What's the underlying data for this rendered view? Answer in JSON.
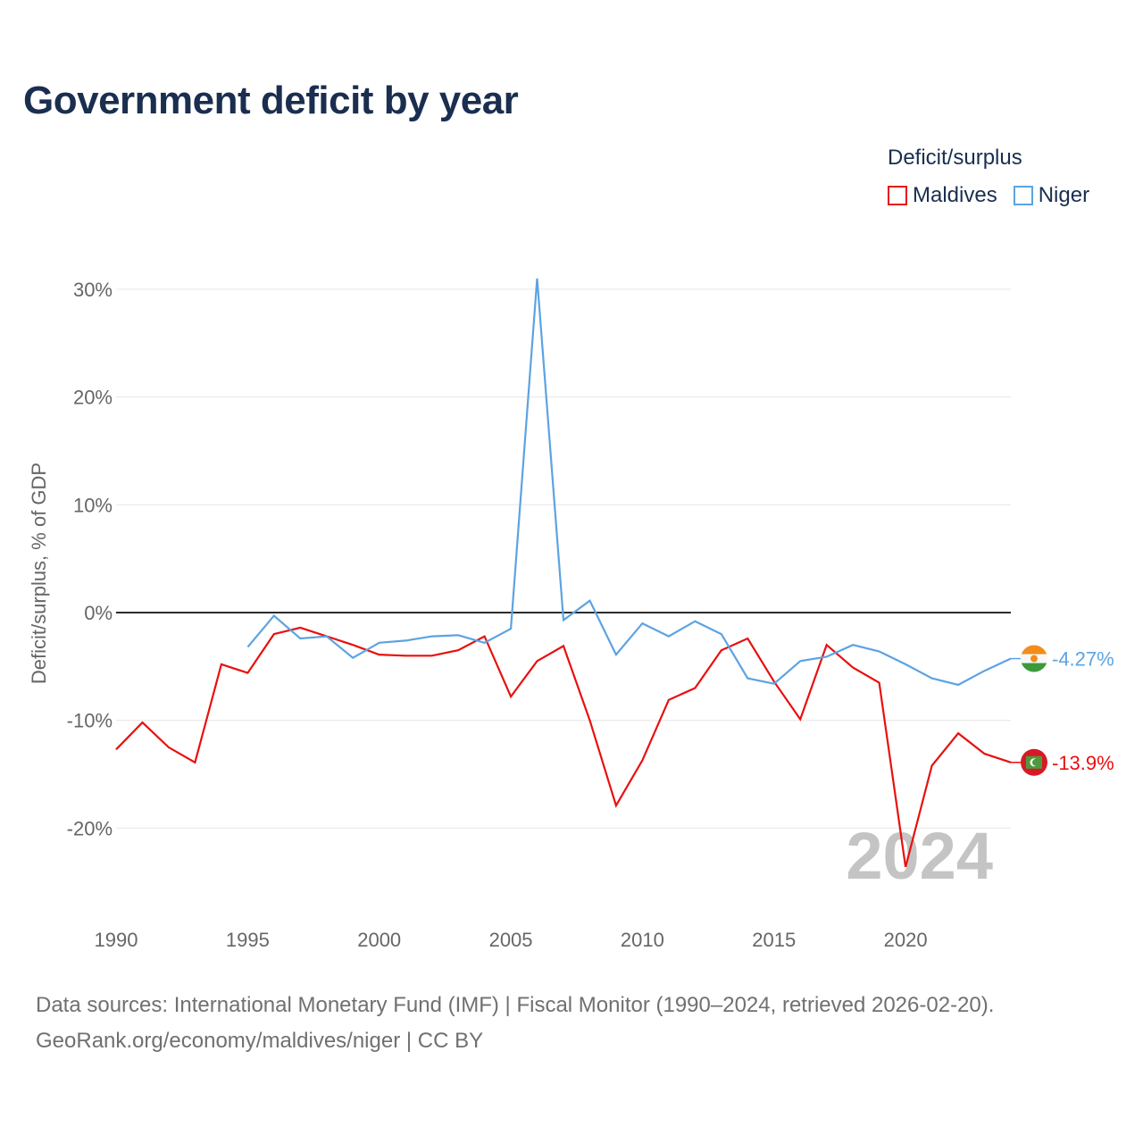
{
  "title": "Government deficit by year",
  "legend": {
    "title": "Deficit/surplus",
    "items": [
      {
        "label": "Maldives",
        "color": "#e8100e"
      },
      {
        "label": "Niger",
        "color": "#5ca3e2"
      }
    ]
  },
  "chart_data": {
    "type": "line",
    "title": "Government deficit by year",
    "xlabel": "",
    "ylabel": "Deficit/surplus, % of GDP",
    "xlim": [
      1990,
      2024
    ],
    "ylim": [
      -25,
      32
    ],
    "x_ticks": [
      1990,
      1995,
      2000,
      2005,
      2010,
      2015,
      2020
    ],
    "x_tick_labels": [
      "1990",
      "1995",
      "2000",
      "2005",
      "2010",
      "2015",
      "2020"
    ],
    "y_ticks": [
      30,
      20,
      10,
      0,
      -10,
      -20
    ],
    "y_tick_labels": [
      "30%",
      "20%",
      "10%",
      "0%",
      "-10%",
      "-20%"
    ],
    "grid": true,
    "zero_line": true,
    "year_watermark": "2024",
    "series": [
      {
        "name": "Maldives",
        "color": "#e8100e",
        "end_label": "-13.9%",
        "flag": "maldives-flag",
        "x": [
          1990,
          1991,
          1992,
          1993,
          1994,
          1995,
          1996,
          1997,
          1998,
          1999,
          2000,
          2001,
          2002,
          2003,
          2004,
          2005,
          2006,
          2007,
          2008,
          2009,
          2010,
          2011,
          2012,
          2013,
          2014,
          2015,
          2016,
          2017,
          2018,
          2019,
          2020,
          2021,
          2022,
          2023,
          2024
        ],
        "y": [
          -12.7,
          -10.2,
          -12.5,
          -13.9,
          -4.8,
          -5.6,
          -2.0,
          -1.4,
          -2.2,
          -3.0,
          -3.9,
          -4.0,
          -4.0,
          -3.5,
          -2.2,
          -7.8,
          -4.5,
          -3.1,
          -10.0,
          -17.9,
          -13.7,
          -8.1,
          -7.0,
          -3.5,
          -2.4,
          -6.4,
          -9.9,
          -3.0,
          -5.1,
          -6.5,
          -23.6,
          -14.2,
          -11.2,
          -13.1,
          -13.9
        ]
      },
      {
        "name": "Niger",
        "color": "#5ca3e2",
        "end_label": "-4.27%",
        "flag": "niger-flag",
        "x": [
          1995,
          1996,
          1997,
          1998,
          1999,
          2000,
          2001,
          2002,
          2003,
          2004,
          2005,
          2006,
          2007,
          2008,
          2009,
          2010,
          2011,
          2012,
          2013,
          2014,
          2015,
          2016,
          2017,
          2018,
          2019,
          2020,
          2021,
          2022,
          2023,
          2024
        ],
        "y": [
          -3.2,
          -0.3,
          -2.4,
          -2.2,
          -4.2,
          -2.8,
          -2.6,
          -2.2,
          -2.1,
          -2.8,
          -1.5,
          31.0,
          -0.7,
          1.1,
          -3.9,
          -1.0,
          -2.2,
          -0.8,
          -2.0,
          -6.1,
          -6.6,
          -4.5,
          -4.1,
          -3.0,
          -3.6,
          -4.8,
          -6.1,
          -6.7,
          -5.4,
          -4.27
        ]
      }
    ]
  },
  "source": {
    "line1": "Data sources: International Monetary Fund (IMF) | Fiscal Monitor (1990–2024, retrieved 2026-02-20).",
    "line2": "GeoRank.org/economy/maldives/niger | CC BY"
  }
}
